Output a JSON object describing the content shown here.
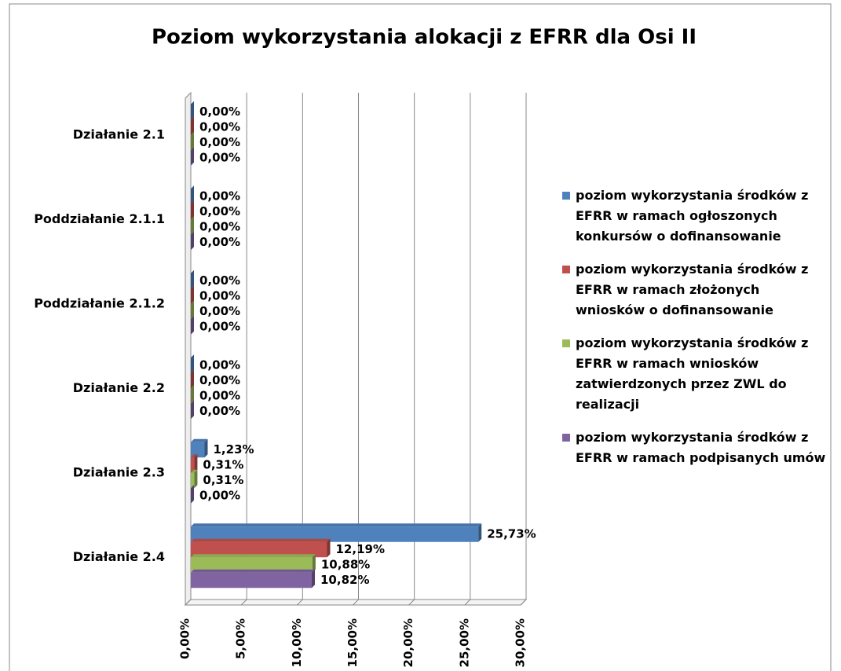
{
  "chart_data": {
    "type": "bar",
    "orientation": "horizontal",
    "title": "Poziom wykorzystania alokacji z EFRR dla Osi II",
    "categories": [
      "Działanie 2.1",
      "Poddziałanie 2.1.1",
      "Poddziałanie 2.1.2",
      "Działanie 2.2",
      "Działanie 2.3",
      "Działanie 2.4"
    ],
    "series": [
      {
        "name": "poziom wykorzystania środków z EFRR w ramach ogłoszonych konkursów o dofinansowanie",
        "color": "#4f81bd",
        "values": [
          0,
          0,
          0,
          0,
          1.23,
          25.73
        ],
        "value_labels": [
          "0,00%",
          "0,00%",
          "0,00%",
          "0,00%",
          "1,23%",
          "25,73%"
        ]
      },
      {
        "name": "poziom wykorzystania środków z EFRR w ramach złożonych wniosków o dofinansowanie",
        "color": "#c0504d",
        "values": [
          0,
          0,
          0,
          0,
          0.31,
          12.19
        ],
        "value_labels": [
          "0,00%",
          "0,00%",
          "0,00%",
          "0,00%",
          "0,31%",
          "12,19%"
        ]
      },
      {
        "name": "poziom wykorzystania środków z EFRR w ramach wniosków zatwierdzonych przez ZWL do realizacji",
        "color": "#9bbb59",
        "values": [
          0,
          0,
          0,
          0,
          0.31,
          10.88
        ],
        "value_labels": [
          "0,00%",
          "0,00%",
          "0,00%",
          "0,00%",
          "0,31%",
          "10,88%"
        ]
      },
      {
        "name": "poziom wykorzystania środków z EFRR w ramach podpisanych umów",
        "color": "#8064a2",
        "values": [
          0,
          0,
          0,
          0,
          0,
          10.82
        ],
        "value_labels": [
          "0,00%",
          "0,00%",
          "0,00%",
          "0,00%",
          "0,00%",
          "10,82%"
        ]
      }
    ],
    "xlim": [
      0,
      30
    ],
    "xticks": [
      {
        "value": 0,
        "label": "0,00%"
      },
      {
        "value": 5,
        "label": "5,00%"
      },
      {
        "value": 10,
        "label": "10,00%"
      },
      {
        "value": 15,
        "label": "15,00%"
      },
      {
        "value": 20,
        "label": "20,00%"
      },
      {
        "value": 25,
        "label": "25,00%"
      },
      {
        "value": 30,
        "label": "30,00%"
      }
    ],
    "grid": true,
    "legend": "right"
  }
}
